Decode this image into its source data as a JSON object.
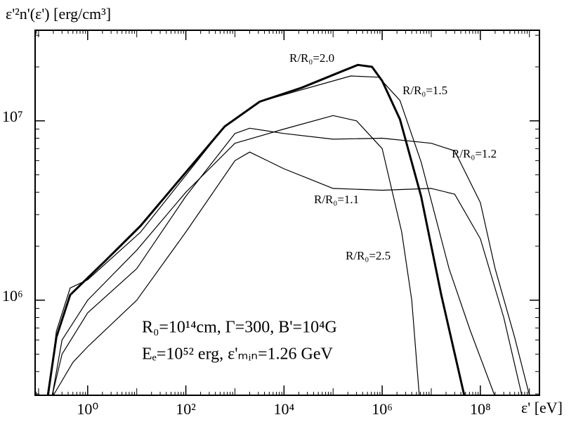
{
  "chart_data": {
    "type": "line",
    "ylabel": "ε'²n'(ε') [erg/cm³]",
    "xlabel": "ε' [eV]",
    "xscale": "log",
    "yscale": "log",
    "xlim": [
      0.085,
      1600000000
    ],
    "ylim": [
      295000,
      32000000
    ],
    "xticks": [
      {
        "value": 1,
        "label": "10⁰"
      },
      {
        "value": 100,
        "label": "10²"
      },
      {
        "value": 10000,
        "label": "10⁴"
      },
      {
        "value": 1000000,
        "label": "10⁶"
      },
      {
        "value": 100000000,
        "label": "10⁸"
      }
    ],
    "yticks": [
      {
        "value": 1000000,
        "label": "10⁶"
      },
      {
        "value": 10000000,
        "label": "10⁷"
      }
    ],
    "annotations": [
      "R₀=10¹⁴cm, Γ=300, B'=10⁴G",
      "Eₑ=10⁵² erg, ε'ₘᵢₙ=1.26 GeV"
    ],
    "series": [
      {
        "name": "R/R₀=2.0",
        "color": "#000000",
        "width": 3,
        "x": [
          0.155,
          0.23,
          0.44,
          2.3,
          12,
          85,
          620,
          3200,
          23000,
          160000,
          320000,
          620000,
          1000000,
          2300000,
          6200000,
          16000000,
          47000000
        ],
        "values": [
          295000,
          620000,
          1070000,
          1660000,
          2600000,
          4900000,
          9300000,
          12800000,
          15300000,
          19000000,
          20500000,
          20000000,
          16700000,
          10200000,
          3800000,
          1070000,
          295000
        ]
      },
      {
        "name": "R/R₀=1.5",
        "color": "#000000",
        "width": 1.2,
        "x": [
          0.16,
          0.23,
          0.44,
          1,
          12,
          85,
          620,
          3200,
          23000,
          230000,
          850000,
          2300000,
          6200000,
          23000000,
          62000000,
          195000000
        ],
        "values": [
          295000,
          670000,
          1170000,
          1300000,
          2400000,
          4700000,
          9300000,
          12800000,
          14900000,
          17800000,
          17500000,
          13000000,
          5900000,
          1500000,
          680000,
          295000
        ]
      },
      {
        "name": "R/R₀=1.2",
        "color": "#000000",
        "width": 1.2,
        "x": [
          0.19,
          0.3,
          1,
          10,
          100,
          1000,
          2000,
          10000,
          100000,
          1000000,
          10000000,
          30000000,
          100000000,
          200000000,
          500000000,
          1000000000
        ],
        "values": [
          295000,
          500000,
          850000,
          1500000,
          3800000,
          8500000,
          9100000,
          8500000,
          7900000,
          8000000,
          7500000,
          6800000,
          3500000,
          1500000,
          620000,
          295000
        ]
      },
      {
        "name": "R/R₀=1.1",
        "color": "#000000",
        "width": 1.2,
        "x": [
          0.2,
          0.5,
          1,
          10,
          100,
          1000,
          2000,
          10000,
          100000,
          1000000,
          10000000,
          30000000,
          100000000,
          300000000,
          700000000
        ],
        "values": [
          295000,
          450000,
          550000,
          1000000,
          2400000,
          6000000,
          6700000,
          5400000,
          4200000,
          4100000,
          4200000,
          3900000,
          2200000,
          800000,
          295000
        ]
      },
      {
        "name": "R/R₀=2.5",
        "color": "#000000",
        "width": 1.2,
        "x": [
          0.19,
          0.3,
          1,
          10,
          100,
          1000,
          10000,
          100000,
          300000,
          1000000,
          2500000,
          4000000,
          5700000
        ],
        "values": [
          295000,
          600000,
          1000000,
          1900000,
          4000000,
          7500000,
          9000000,
          10700000,
          10000000,
          7000000,
          2400000,
          1000000,
          295000
        ]
      }
    ]
  }
}
